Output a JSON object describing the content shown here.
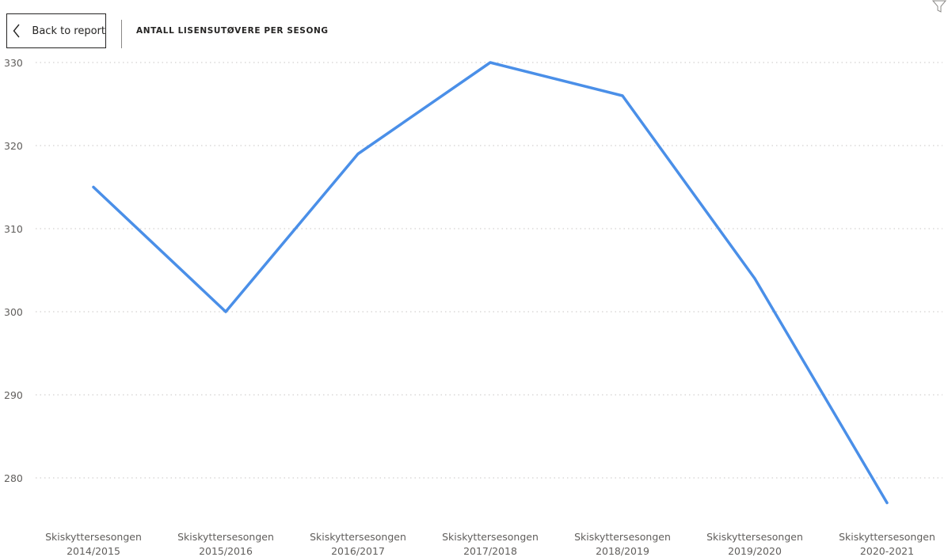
{
  "header": {
    "back_label": "Back to report",
    "title": "ANTALL LISENSUTØVERE PER SESONG"
  },
  "icons": {
    "back": "chevron-left-icon",
    "filter": "filter-icon"
  },
  "colors": {
    "line": "#4a8fe8",
    "grid": "#c8c6c4",
    "text": "#605e5c",
    "title": "#252423"
  },
  "chart_data": {
    "type": "line",
    "title": "ANTALL LISENSUTØVERE PER SESONG",
    "categories": [
      [
        "Skiskyttersesongen",
        "2014/2015"
      ],
      [
        "Skiskyttersesongen",
        "2015/2016"
      ],
      [
        "Skiskyttersesongen",
        "2016/2017"
      ],
      [
        "Skiskyttersesongen",
        "2017/2018"
      ],
      [
        "Skiskyttersesongen",
        "2018/2019"
      ],
      [
        "Skiskyttersesongen",
        "2019/2020"
      ],
      [
        "Skiskyttersesongen",
        "2020-2021"
      ]
    ],
    "values": [
      315,
      300,
      319,
      330,
      326,
      304,
      277
    ],
    "y_ticks": [
      280,
      290,
      300,
      310,
      320,
      330
    ],
    "ylim": [
      275,
      331.5
    ],
    "grid": true,
    "legend": "none"
  }
}
